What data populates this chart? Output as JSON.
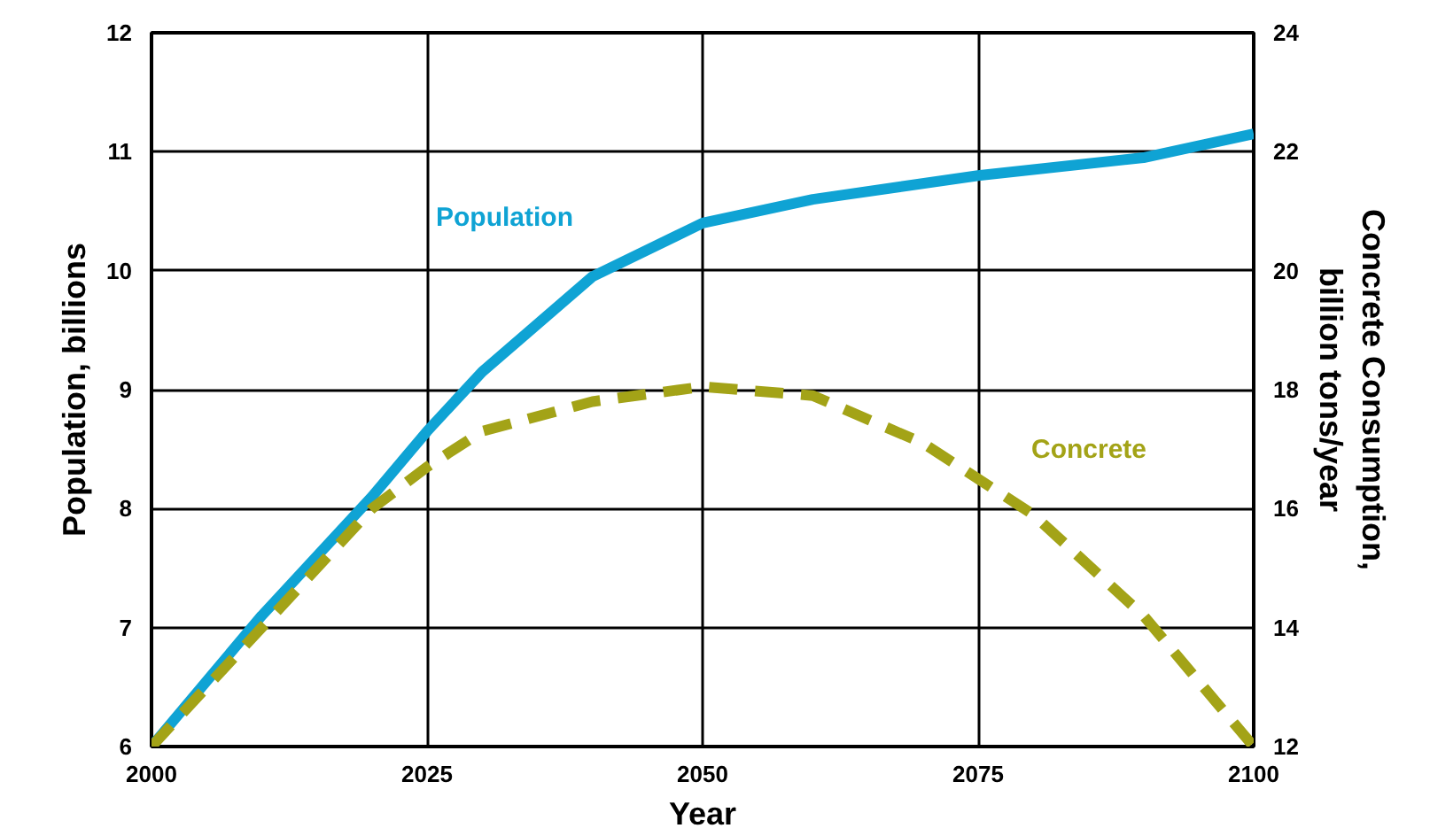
{
  "chart_data": {
    "type": "line",
    "xlabel": "Year",
    "ylabel": "Population, billions",
    "y2label": "Concrete Consumption,\nbillion tons/year",
    "xlim": [
      2000,
      2100
    ],
    "xticks": [
      2000,
      2025,
      2050,
      2075,
      2100
    ],
    "ylim": [
      6,
      12
    ],
    "yticks": [
      6,
      7,
      8,
      9,
      10,
      11,
      12
    ],
    "y2lim": [
      12,
      24
    ],
    "y2ticks": [
      12,
      14,
      16,
      18,
      20,
      22,
      24
    ],
    "grid": true,
    "legend": false,
    "series": [
      {
        "name": "Population",
        "color": "#0fa3d4",
        "line_style": "solid",
        "x": [
          2000,
          2010,
          2020,
          2025,
          2030,
          2040,
          2050,
          2060,
          2075,
          2090,
          2100
        ],
        "values": [
          6,
          7.1,
          8.1,
          8.65,
          9.15,
          9.95,
          10.4,
          10.6,
          10.8,
          10.95,
          11.15
        ]
      },
      {
        "name": "Concrete",
        "color": "#a3a317",
        "line_style": "dashed",
        "axis": "y2",
        "x": [
          2000,
          2010,
          2020,
          2025,
          2030,
          2040,
          2050,
          2060,
          2070,
          2075,
          2080,
          2090,
          2100
        ],
        "values": [
          12,
          14,
          16,
          16.7,
          17.3,
          17.8,
          18.05,
          17.9,
          17.1,
          16.5,
          15.9,
          14.2,
          12
        ]
      }
    ]
  }
}
